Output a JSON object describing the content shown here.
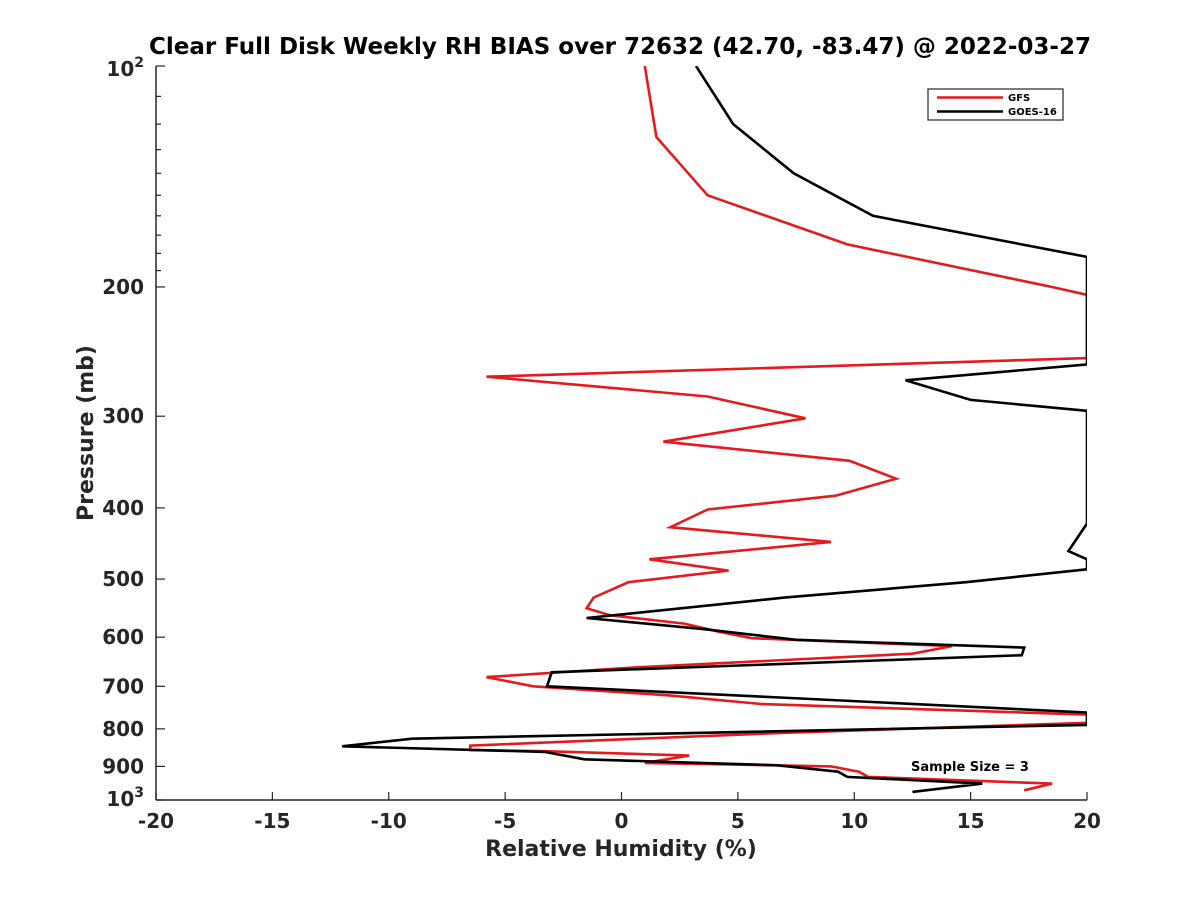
{
  "chart_data": {
    "type": "line",
    "title": "Clear Full Disk Weekly RH BIAS over 72632 (42.70, -83.47) @ 2022-03-27",
    "xlabel": "Relative Humidity (%)",
    "ylabel": "Pressure (mb)",
    "xlim": [
      -20,
      20
    ],
    "ylim": [
      100,
      1000
    ],
    "y_scale": "log",
    "y_reversed": true,
    "grid": false,
    "legend_position": "top-right",
    "x_ticks": [
      "-20",
      "-15",
      "-10",
      "-5",
      "0",
      "5",
      "10",
      "15",
      "20"
    ],
    "y_ticks": [
      {
        "value": 200,
        "label": "200"
      },
      {
        "value": 300,
        "label": "300"
      },
      {
        "value": 400,
        "label": "400"
      },
      {
        "value": 500,
        "label": "500"
      },
      {
        "value": 600,
        "label": "600"
      },
      {
        "value": 700,
        "label": "700"
      },
      {
        "value": 800,
        "label": "800"
      },
      {
        "value": 900,
        "label": "900"
      }
    ],
    "y_tick_top": {
      "base": "10",
      "exp": "2"
    },
    "y_tick_bottom": {
      "base": "10",
      "exp": "3"
    },
    "annotation": "Sample Size = 3",
    "series": [
      {
        "name": "GFS",
        "color": "#e41a1c",
        "points": [
          [
            1.0,
            100
          ],
          [
            1.5,
            125
          ],
          [
            3.7,
            150
          ],
          [
            9.7,
            175
          ],
          [
            18.5,
            200
          ],
          [
            20.0,
            205
          ],
          [
            20.0,
            250
          ],
          [
            -5.8,
            265
          ],
          [
            3.7,
            282
          ],
          [
            7.9,
            302
          ],
          [
            1.8,
            325
          ],
          [
            9.8,
            345
          ],
          [
            11.8,
            365
          ],
          [
            9.2,
            385
          ],
          [
            3.7,
            402
          ],
          [
            2.1,
            425
          ],
          [
            9.0,
            445
          ],
          [
            1.2,
            470
          ],
          [
            4.6,
            487
          ],
          [
            0.3,
            505
          ],
          [
            -1.2,
            530
          ],
          [
            -1.5,
            548
          ],
          [
            -0.5,
            560
          ],
          [
            2.7,
            575
          ],
          [
            4.2,
            590
          ],
          [
            5.6,
            602
          ],
          [
            14.2,
            617
          ],
          [
            12.5,
            632
          ],
          [
            0.5,
            660
          ],
          [
            -5.8,
            680
          ],
          [
            -3.8,
            700
          ],
          [
            2.0,
            720
          ],
          [
            6.0,
            740
          ],
          [
            20.0,
            765
          ],
          [
            20.0,
            785
          ],
          [
            7.0,
            810
          ],
          [
            -6.5,
            843
          ],
          [
            -6.5,
            855
          ],
          [
            -3.3,
            858
          ],
          [
            2.9,
            870
          ],
          [
            1.0,
            890
          ],
          [
            9.0,
            900
          ],
          [
            10.2,
            915
          ],
          [
            10.6,
            930
          ],
          [
            18.5,
            950
          ],
          [
            17.3,
            970
          ]
        ]
      },
      {
        "name": "GOES-16",
        "color": "#000000",
        "points": [
          [
            3.2,
            100
          ],
          [
            4.8,
            120
          ],
          [
            7.4,
            140
          ],
          [
            10.8,
            160
          ],
          [
            20.0,
            182
          ],
          [
            20.0,
            255
          ],
          [
            12.2,
            268
          ],
          [
            15.0,
            285
          ],
          [
            20.0,
            295
          ],
          [
            20.0,
            420
          ],
          [
            19.2,
            458
          ],
          [
            20.0,
            470
          ],
          [
            20.0,
            485
          ],
          [
            14.8,
            505
          ],
          [
            7.0,
            530
          ],
          [
            -1.5,
            565
          ],
          [
            3.5,
            585
          ],
          [
            7.5,
            605
          ],
          [
            17.3,
            620
          ],
          [
            17.2,
            635
          ],
          [
            -3.0,
            670
          ],
          [
            -3.2,
            700
          ],
          [
            6.8,
            725
          ],
          [
            20.0,
            760
          ],
          [
            20.0,
            790
          ],
          [
            -9.0,
            825
          ],
          [
            -12.0,
            845
          ],
          [
            -3.3,
            860
          ],
          [
            -1.6,
            880
          ],
          [
            6.7,
            897
          ],
          [
            9.3,
            915
          ],
          [
            9.7,
            930
          ],
          [
            15.5,
            950
          ],
          [
            12.5,
            975
          ]
        ]
      }
    ]
  }
}
